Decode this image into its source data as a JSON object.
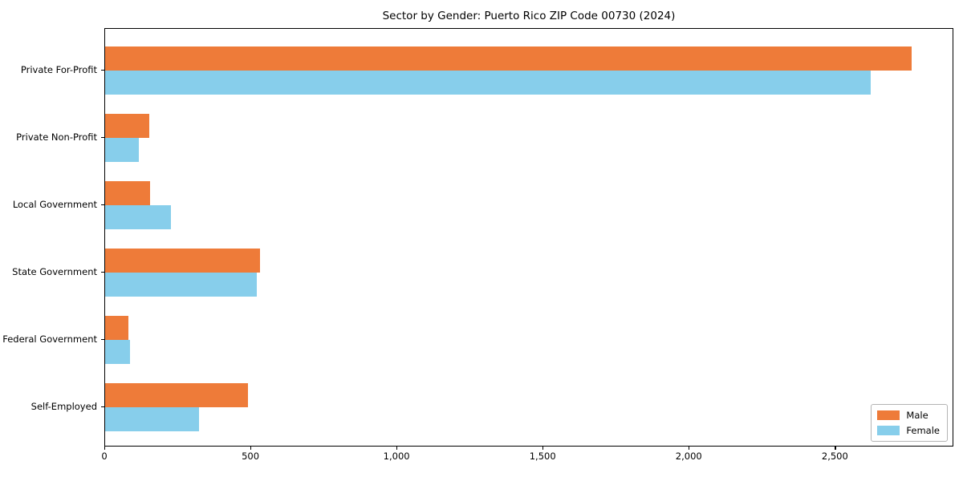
{
  "chart_data": {
    "type": "bar",
    "orientation": "horizontal",
    "title": "Sector by Gender: Puerto Rico ZIP Code 00730 (2024)",
    "xlabel": "",
    "ylabel": "",
    "categories": [
      "Private For-Profit",
      "Private Non-Profit",
      "Local Government",
      "State Government",
      "Federal Government",
      "Self-Employed"
    ],
    "series": [
      {
        "name": "Male",
        "color": "#ee7b39",
        "values": [
          2760,
          150,
          155,
          530,
          80,
          490
        ]
      },
      {
        "name": "Female",
        "color": "#87ceeb",
        "values": [
          2620,
          115,
          225,
          520,
          85,
          320
        ]
      }
    ],
    "xlim": [
      0,
      2900
    ],
    "xticks": [
      0,
      500,
      1000,
      1500,
      2000,
      2500
    ],
    "xtick_labels": [
      "0",
      "500",
      "1,000",
      "1,500",
      "2,000",
      "2,500"
    ],
    "grid": false,
    "legend_position": "lower right",
    "colors": {
      "male": "#ee7b39",
      "female": "#87ceeb",
      "spine": "#000000",
      "background": "#ffffff"
    }
  }
}
